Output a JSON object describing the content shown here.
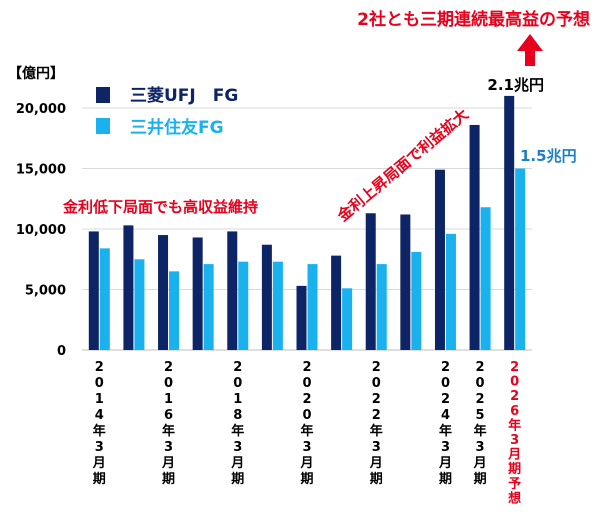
{
  "chart_data": {
    "type": "bar",
    "unit_label": "【億円】",
    "ylim": [
      0,
      20000
    ],
    "yticks": [
      "0",
      "5,000",
      "10,000",
      "15,000",
      "20,000"
    ],
    "ytick_values": [
      0,
      5000,
      10000,
      15000,
      20000
    ],
    "categories": [
      "2014年3月期",
      "",
      "2016年3月期",
      "",
      "2018年3月期",
      "",
      "2020年3月期",
      "",
      "2022年3月期",
      "",
      "2024年3月期",
      "2025年3月期",
      "2026年3月期予想"
    ],
    "category_colors": [
      "#000000",
      "#000000",
      "#000000",
      "#000000",
      "#000000",
      "#000000",
      "#000000",
      "#000000",
      "#000000",
      "#000000",
      "#000000",
      "#000000",
      "#e8001c"
    ],
    "series": [
      {
        "name": "三菱UFJ　FG",
        "color": "#0d2566",
        "values": [
          9800,
          10300,
          9500,
          9300,
          9800,
          8700,
          5300,
          7800,
          11300,
          11200,
          14900,
          18600,
          21000
        ]
      },
      {
        "name": "三井住友FG",
        "color": "#1ab2ee",
        "values": [
          8400,
          7500,
          6500,
          7100,
          7300,
          7300,
          7100,
          5100,
          7100,
          8100,
          9600,
          11800,
          15000
        ]
      }
    ],
    "annotations": {
      "headline": "2社とも三期連続最高益の予想",
      "left_note": "金利低下局面でも高収益維持",
      "right_note": "金利上昇局面で利益拡大",
      "mufg_value": "2.1兆円",
      "smfg_value": "1.5兆円"
    },
    "colors": {
      "accent_red": "#e8001c"
    }
  }
}
